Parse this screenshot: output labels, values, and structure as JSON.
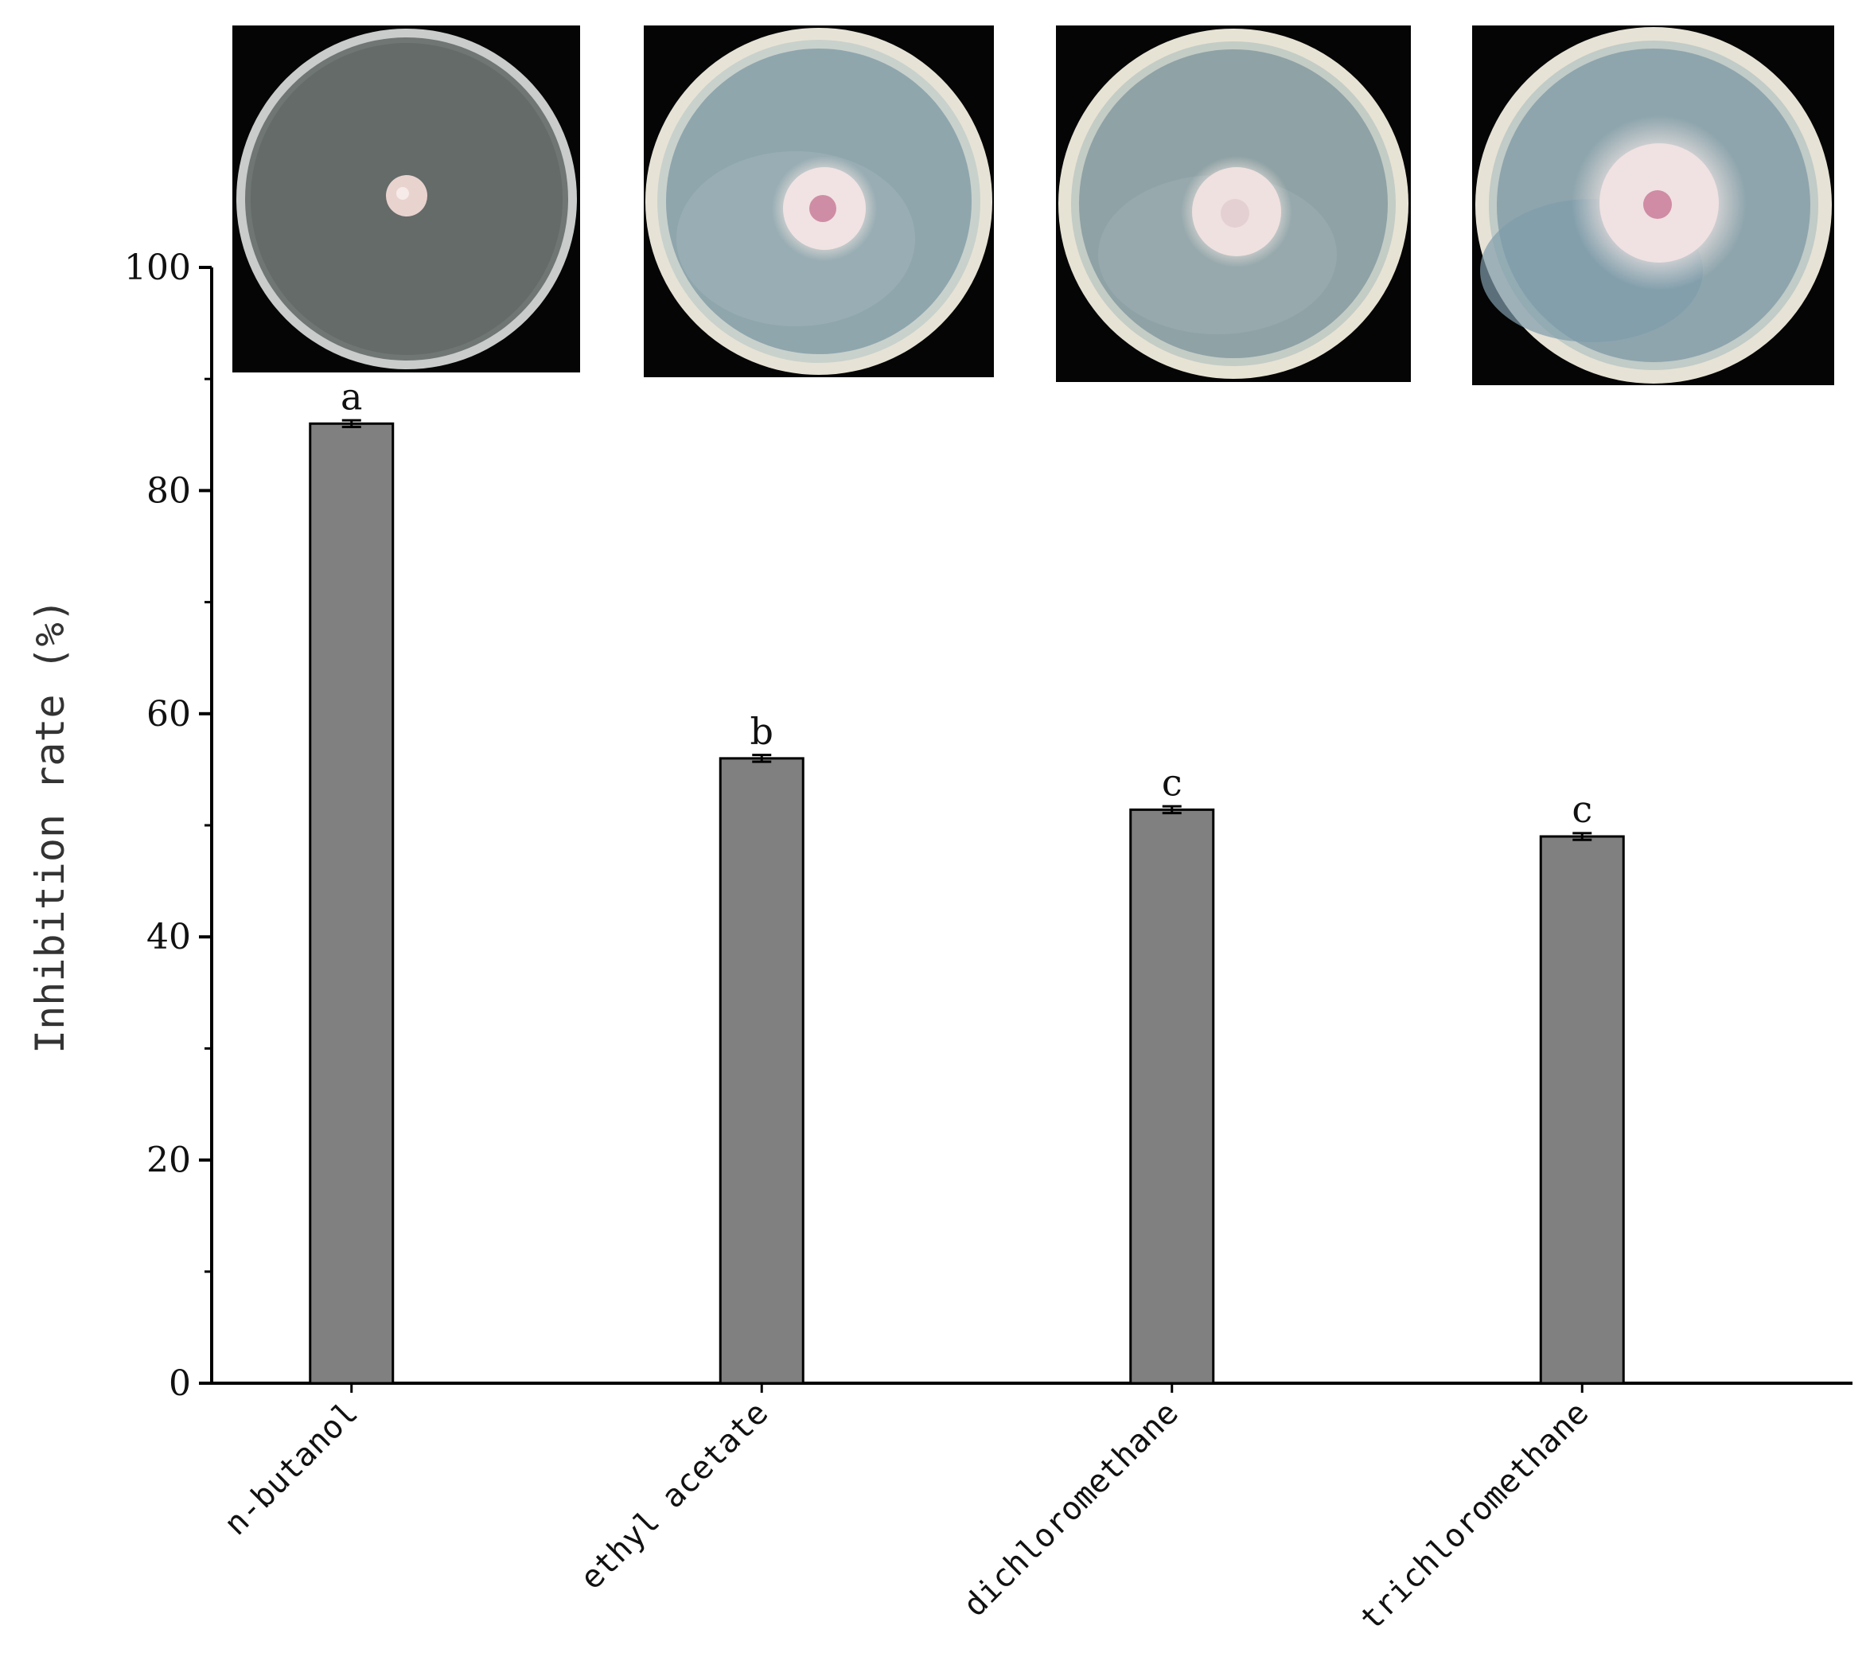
{
  "chart_data": {
    "type": "bar",
    "categories": [
      "n-butanol",
      "ethyl acetate",
      "dichloromethane",
      "trichloromethane"
    ],
    "values": [
      86.0,
      56.0,
      51.4,
      49.0
    ],
    "errors": [
      0.3,
      0.3,
      0.3,
      0.3
    ],
    "significance": [
      "a",
      "b",
      "c",
      "c"
    ],
    "ylabel": "Inhibition rate (%)",
    "ylim": [
      0,
      100
    ],
    "yticks": [
      0,
      20,
      40,
      60,
      80,
      100
    ],
    "bar_color": "#808080",
    "grid": false,
    "inset_images": [
      "petri-dish-n-butanol",
      "petri-dish-ethyl-acetate",
      "petri-dish-dichloromethane",
      "petri-dish-trichloromethane"
    ]
  }
}
